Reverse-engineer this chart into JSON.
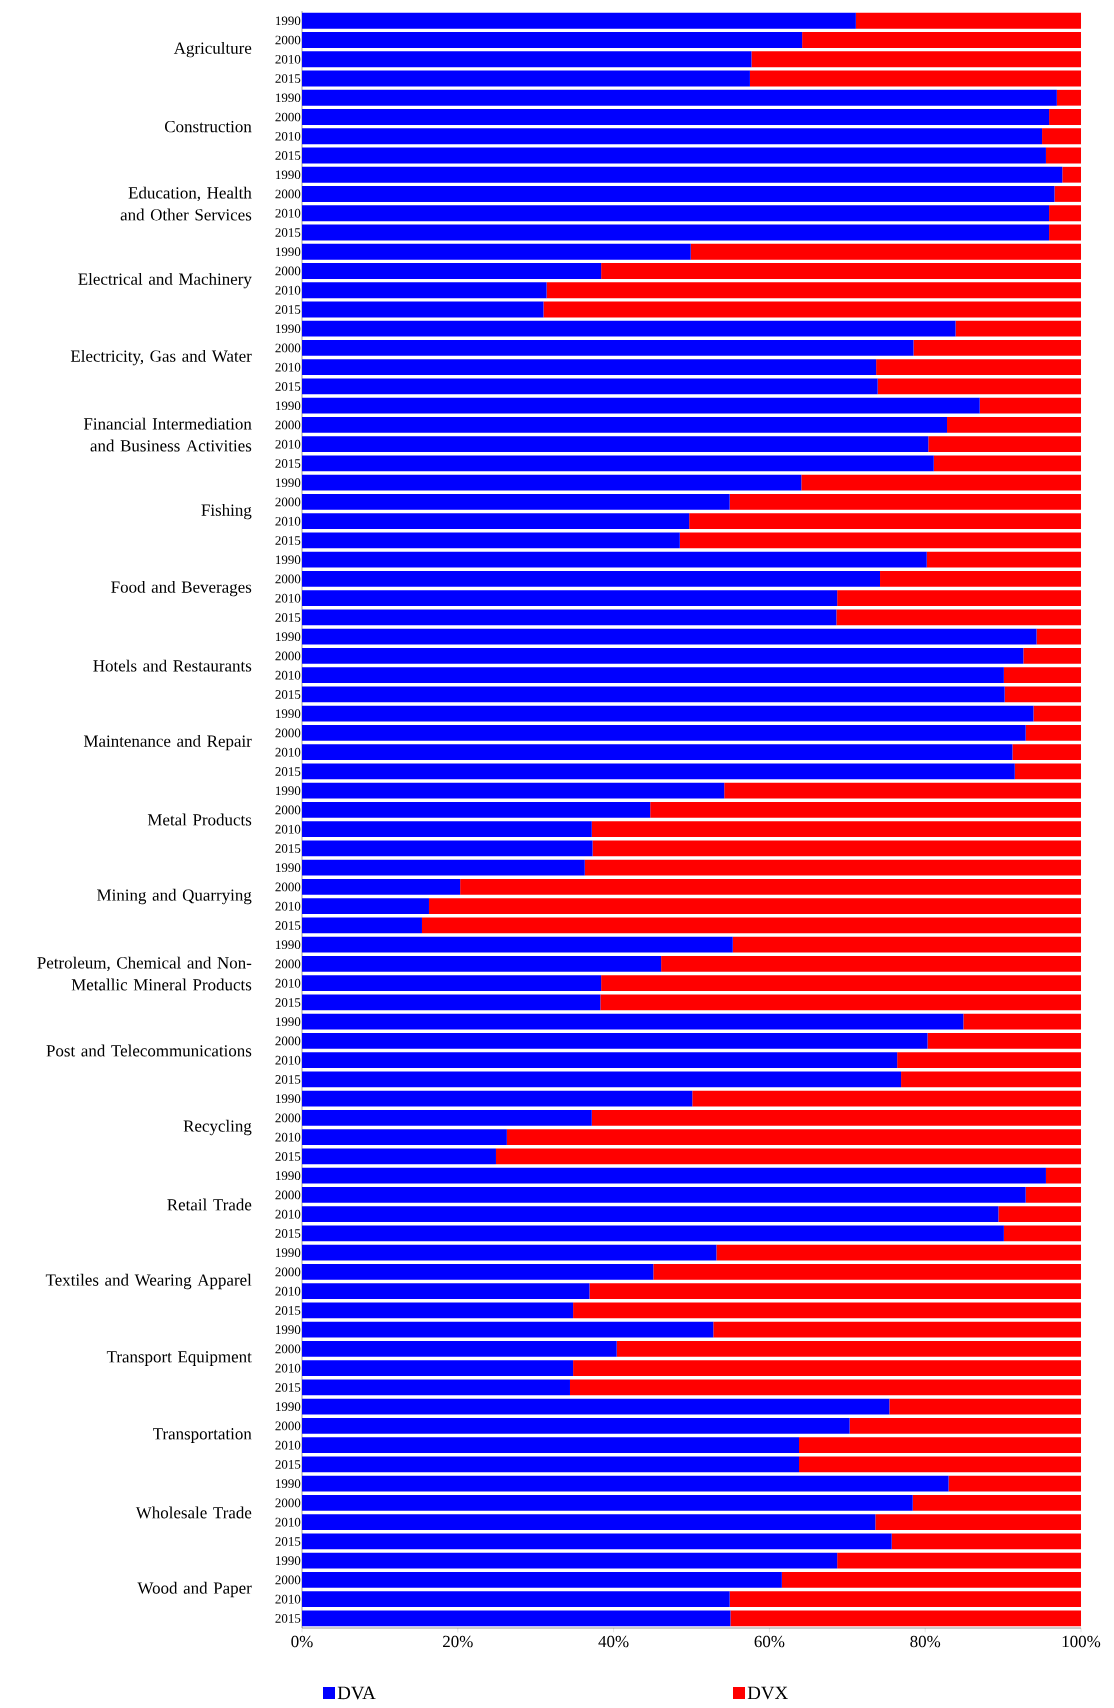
{
  "chart_data": {
    "type": "bar",
    "orientation": "horizontal",
    "stacked": true,
    "categories": [
      "1990",
      "2000",
      "2010",
      "2015",
      "1990",
      "2000",
      "2010",
      "2015",
      "1990",
      "2000",
      "2010",
      "2015",
      "1990",
      "2000",
      "2010",
      "2015",
      "1990",
      "2000",
      "2010",
      "2015",
      "1990",
      "2000",
      "2010",
      "2015",
      "1990",
      "2000",
      "2010",
      "2015",
      "1990",
      "2000",
      "2010",
      "2015",
      "1990",
      "2000",
      "2010",
      "2015",
      "1990",
      "2000",
      "2010",
      "2015",
      "1990",
      "2000",
      "2010",
      "2015",
      "1990",
      "2000",
      "2010",
      "2015",
      "1990",
      "2000",
      "2010",
      "2015",
      "1990",
      "2000",
      "2010",
      "2015",
      "1990",
      "2000",
      "2010",
      "2015",
      "1990",
      "2000",
      "2010",
      "2015",
      "1990",
      "2000",
      "2010",
      "2015",
      "1990",
      "2000",
      "2010",
      "2015",
      "1990",
      "2000",
      "2010",
      "2015",
      "1990",
      "2000",
      "2010",
      "2015",
      "1990",
      "2000",
      "2010",
      "2015"
    ],
    "annotations": [
      "Agriculture",
      "Construction",
      "Education, Health and Other Services",
      "Electrical and Machinery",
      "Electricity, Gas and Water",
      "Financial Intermediation and Business Activities",
      "Fishing",
      "Food and Beverages",
      "Hotels and Restaurants",
      "Maintenance and Repair",
      "Metal Products",
      "Mining and Quarrying",
      "Petroleum, Chemical and Non-Metallic Mineral Products",
      "Post and Telecommunications",
      "Recycling",
      "Retail Trade",
      "Textiles and Wearing Apparel",
      "Transport Equipment",
      "Transportation",
      "Wholesale Trade",
      "Wood and Paper"
    ],
    "series": [
      {
        "name": "DVA",
        "color": "#0000ff",
        "values": [
          71.1,
          64.2,
          57.7,
          57.5,
          96.9,
          95.9,
          95.0,
          95.5,
          97.6,
          96.6,
          95.9,
          95.9,
          49.9,
          38.4,
          31.4,
          31.0,
          83.9,
          78.5,
          73.7,
          73.9,
          87.0,
          82.8,
          80.4,
          81.1,
          64.1,
          54.9,
          49.7,
          48.5,
          80.2,
          74.2,
          68.7,
          68.6,
          94.3,
          92.6,
          90.1,
          90.2,
          93.9,
          92.9,
          91.2,
          91.5,
          54.2,
          44.7,
          37.2,
          37.3,
          36.3,
          20.3,
          16.3,
          15.4,
          55.3,
          46.1,
          38.4,
          38.3,
          84.9,
          80.3,
          76.4,
          76.9,
          50.1,
          37.2,
          26.3,
          24.9,
          95.5,
          92.9,
          89.4,
          90.1,
          53.2,
          45.1,
          36.9,
          34.8,
          52.8,
          40.4,
          34.8,
          34.4,
          75.4,
          70.3,
          63.8,
          63.8,
          83.0,
          78.4,
          73.6,
          75.7,
          68.7,
          61.6,
          54.9,
          55.0
        ]
      },
      {
        "name": "DVX",
        "color": "#ff0000",
        "values": [
          28.9,
          35.8,
          42.3,
          42.5,
          3.1,
          4.1,
          5.0,
          4.5,
          2.4,
          3.4,
          4.1,
          4.1,
          50.1,
          61.6,
          68.6,
          69.0,
          16.1,
          21.5,
          26.3,
          26.1,
          13.0,
          17.2,
          19.6,
          18.9,
          35.9,
          45.1,
          50.3,
          51.5,
          19.8,
          25.8,
          31.3,
          31.4,
          5.7,
          7.4,
          9.9,
          9.8,
          6.1,
          7.1,
          8.8,
          8.5,
          45.8,
          55.3,
          62.8,
          62.7,
          63.7,
          79.7,
          83.7,
          84.6,
          44.7,
          53.9,
          61.6,
          61.7,
          15.1,
          19.7,
          23.6,
          23.1,
          49.9,
          62.8,
          73.7,
          75.1,
          4.5,
          7.1,
          10.6,
          9.9,
          46.8,
          54.9,
          63.1,
          65.2,
          47.2,
          59.6,
          65.2,
          65.6,
          24.6,
          29.7,
          36.2,
          36.2,
          17.0,
          21.6,
          26.4,
          24.3,
          31.3,
          38.4,
          45.1,
          45.0
        ]
      }
    ],
    "xlim": [
      0,
      100
    ],
    "xticks": [
      {
        "value": 0,
        "label": "0%"
      },
      {
        "value": 20,
        "label": "20%"
      },
      {
        "value": 40,
        "label": "40%"
      },
      {
        "value": 60,
        "label": "60%"
      },
      {
        "value": 80,
        "label": "80%"
      },
      {
        "value": 100,
        "label": "100%"
      }
    ],
    "legend": "bottom"
  }
}
